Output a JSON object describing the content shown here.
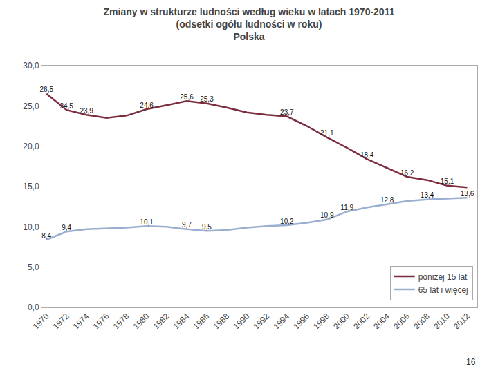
{
  "chart_data": {
    "type": "line",
    "title": "Zmiany w strukturze ludności według wieku w latach 1970-2011",
    "subtitle": [
      "(odsetki ogółu ludności w roku)",
      "Polska"
    ],
    "annotations": [
      "16"
    ],
    "x": [
      1970,
      1972,
      1974,
      1976,
      1978,
      1980,
      1982,
      1984,
      1986,
      1988,
      1990,
      1992,
      1994,
      1996,
      1998,
      2000,
      2002,
      2004,
      2006,
      2008,
      2010,
      2012
    ],
    "series": [
      {
        "name": "poniżej 15 lat",
        "color": "#7b2d3f",
        "values": [
          26.5,
          24.5,
          23.9,
          23.5,
          23.8,
          24.6,
          25.1,
          25.6,
          25.3,
          24.8,
          24.2,
          23.9,
          23.7,
          22.5,
          21.1,
          19.8,
          18.4,
          17.3,
          16.2,
          15.8,
          15.1,
          14.9
        ],
        "value_labels": [
          "26,5",
          "24,5",
          "23,9",
          null,
          null,
          "24,6",
          null,
          "25,6",
          "25,3",
          null,
          null,
          null,
          "23,7",
          null,
          "21,1",
          null,
          "18,4",
          null,
          "16,2",
          null,
          "15,1",
          null
        ]
      },
      {
        "name": "65 lat i więcej",
        "color": "#9aaed0",
        "values": [
          8.4,
          9.4,
          9.7,
          9.8,
          9.9,
          10.1,
          10.0,
          9.7,
          9.5,
          9.6,
          9.9,
          10.1,
          10.2,
          10.5,
          10.9,
          11.9,
          12.4,
          12.8,
          13.2,
          13.4,
          13.5,
          13.6
        ],
        "value_labels": [
          "8,4",
          "9,4",
          null,
          null,
          null,
          "10,1",
          null,
          "9,7",
          "9,5",
          null,
          null,
          null,
          "10,2",
          null,
          "10,9",
          "11,9",
          null,
          "12,8",
          null,
          "13,4",
          null,
          "13,6"
        ]
      }
    ],
    "xlim": [
      1969.5,
      2013
    ],
    "xticks": [
      1970,
      1972,
      1974,
      1976,
      1978,
      1980,
      1982,
      1984,
      1986,
      1988,
      1990,
      1992,
      1994,
      1996,
      1998,
      2000,
      2002,
      2004,
      2006,
      2008,
      2010,
      2012
    ],
    "ylim": [
      0,
      30
    ],
    "yticks": [
      {
        "value": 0,
        "label": "0,0"
      },
      {
        "value": 5,
        "label": "5,0"
      },
      {
        "value": 10,
        "label": "10,0"
      },
      {
        "value": 15,
        "label": "15,0"
      },
      {
        "value": 20,
        "label": "20,0"
      },
      {
        "value": 25,
        "label": "25,0"
      },
      {
        "value": 30,
        "label": "30,0"
      }
    ],
    "grid": true,
    "legend": "lower right",
    "data_labels": true
  }
}
